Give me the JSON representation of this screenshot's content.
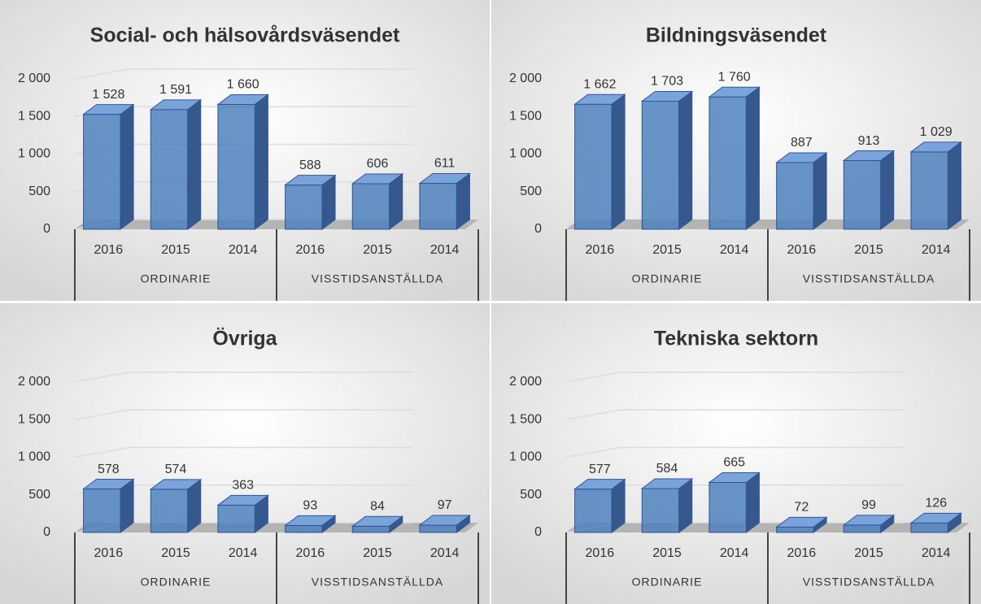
{
  "chart_data": [
    {
      "type": "bar3d",
      "title": "Social- och hälsovårdsväsendet",
      "categories": [
        "2016",
        "2015",
        "2014",
        "2016",
        "2015",
        "2014"
      ],
      "groups": [
        "ORDINARIE",
        "VISSTIDSANSTÄLLDA"
      ],
      "values": [
        1528,
        1591,
        1660,
        588,
        606,
        611
      ],
      "value_labels": [
        "1 528",
        "1 591",
        "1 660",
        "588",
        "606",
        "611"
      ],
      "color": "#4f81bd",
      "ylim": [
        0,
        2000
      ],
      "yticks": [
        0,
        500,
        {
          "value": 1000,
          "label": "1 000"
        },
        {
          "value": 1500,
          "label": "1 500"
        },
        {
          "value": 2000,
          "label": "2 000"
        }
      ],
      "grid": true
    },
    {
      "type": "bar3d",
      "title": "Bildningsväsendet",
      "categories": [
        "2016",
        "2015",
        "2014",
        "2016",
        "2015",
        "2014"
      ],
      "groups": [
        "ORDINARIE",
        "VISSTIDSANSTÄLLDA"
      ],
      "values": [
        1662,
        1703,
        1760,
        887,
        913,
        1029
      ],
      "value_labels": [
        "1 662",
        "1 703",
        "1 760",
        "887",
        "913",
        "1 029"
      ],
      "color": "#4f81bd",
      "ylim": [
        0,
        2000
      ],
      "yticks": [
        0,
        500,
        {
          "value": 1000,
          "label": "1 000"
        },
        {
          "value": 1500,
          "label": "1 500"
        },
        {
          "value": 2000,
          "label": "2 000"
        }
      ],
      "grid": false
    },
    {
      "type": "bar3d",
      "title": "Övriga",
      "categories": [
        "2016",
        "2015",
        "2014",
        "2016",
        "2015",
        "2014"
      ],
      "groups": [
        "ORDINARIE",
        "VISSTIDSANSTÄLLDA"
      ],
      "values": [
        578,
        574,
        363,
        93,
        84,
        97
      ],
      "color": "#4f81bd",
      "ylim": [
        0,
        2000
      ],
      "yticks": [
        0,
        500,
        {
          "value": 1000,
          "label": "1 000"
        },
        {
          "value": 1500,
          "label": "1 500"
        },
        {
          "value": 2000,
          "label": "2 000"
        }
      ],
      "grid": true
    },
    {
      "type": "bar3d",
      "title": "Tekniska sektorn",
      "categories": [
        "2016",
        "2015",
        "2014",
        "2016",
        "2015",
        "2014"
      ],
      "groups": [
        "ORDINARIE",
        "VISSTIDSANSTÄLLDA"
      ],
      "values": [
        577,
        584,
        665,
        72,
        99,
        126
      ],
      "color": "#4f81bd",
      "ylim": [
        0,
        2000
      ],
      "yticks": [
        0,
        500,
        {
          "value": 1000,
          "label": "1 000"
        },
        {
          "value": 1500,
          "label": "1 500"
        },
        {
          "value": 2000,
          "label": "2 000"
        }
      ],
      "grid": true
    }
  ]
}
